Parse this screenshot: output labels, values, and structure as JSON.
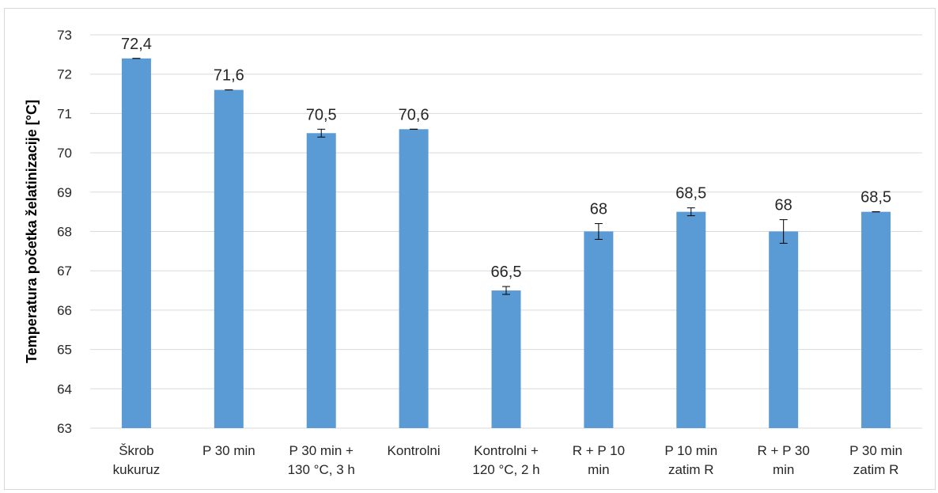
{
  "chart_data": {
    "type": "bar",
    "title": "",
    "xlabel": "",
    "ylabel": "Temperatura početka želatinizacije [°C]",
    "ylim": [
      63,
      73
    ],
    "yticks": [
      63,
      64,
      65,
      66,
      67,
      68,
      69,
      70,
      71,
      72,
      73
    ],
    "grid": true,
    "bar_color": "#5b9bd5",
    "categories": [
      [
        "Škrob",
        "kukuruz"
      ],
      [
        "P 30 min"
      ],
      [
        "P 30 min +",
        "130 °C, 3 h"
      ],
      [
        "Kontrolni"
      ],
      [
        "Kontrolni +",
        "120 °C, 2 h"
      ],
      [
        "R + P 10",
        "min"
      ],
      [
        "P 10 min",
        "zatim R"
      ],
      [
        "R + P 30",
        "min"
      ],
      [
        "P 30 min",
        "zatim R"
      ]
    ],
    "values": [
      72.4,
      71.6,
      70.5,
      70.6,
      66.5,
      68.0,
      68.5,
      68.0,
      68.5
    ],
    "errors": [
      0.0,
      0.0,
      0.1,
      0.0,
      0.1,
      0.2,
      0.1,
      0.3,
      0.0
    ],
    "data_labels": [
      "72,4",
      "71,6",
      "70,5",
      "70,6",
      "66,5",
      "68",
      "68,5",
      "68",
      "68,5"
    ]
  }
}
